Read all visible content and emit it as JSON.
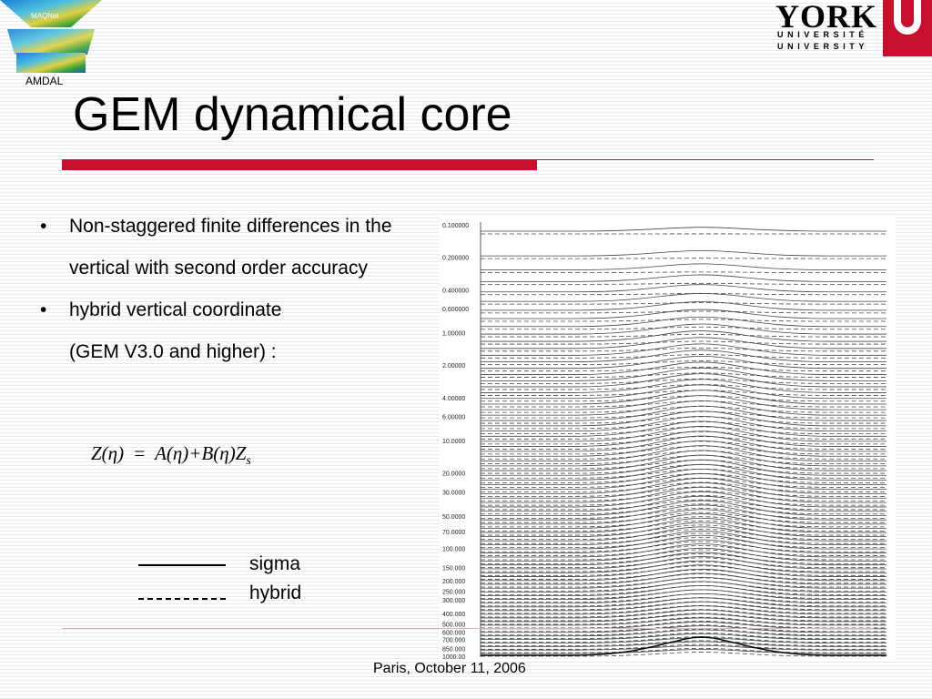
{
  "logo_left": {
    "text": "MAQNet",
    "caption": "AMDAL"
  },
  "logo_right": {
    "word": "YORK",
    "line_fr": "UNIVERSITÉ",
    "line_en": "UNIVERSITY"
  },
  "title": "GEM dynamical core",
  "bullets": [
    {
      "text": "Non-staggered finite differences in the vertical with second order accuracy"
    },
    {
      "line1": "hybrid vertical coordinate",
      "line2": "(GEM V3.0 and higher) :"
    }
  ],
  "formula": {
    "lhs": "Z(η)",
    "eq": "=",
    "rhs": "A(η)+B(η)Z",
    "sub": "s"
  },
  "legend": [
    {
      "style": "solid",
      "label": "sigma"
    },
    {
      "style": "dashed",
      "label": "hybrid"
    }
  ],
  "plot": {
    "y_labels": [
      "0.100000",
      "0.200000",
      "0.400000",
      "0.600000",
      "1.00000",
      "2.00000",
      "4.00000",
      "6.00000",
      "10.0000",
      "20.0000",
      "30.0000",
      "50.0000",
      "70.0000",
      "100.000",
      "150.000",
      "200.000",
      "250.000",
      "300.000",
      "400.000",
      "500.000",
      "600.000",
      "700.000",
      "850.000",
      "1000.00"
    ]
  },
  "footer": "Paris, October 11, 2006",
  "colors": {
    "accent": "#c8102e"
  }
}
